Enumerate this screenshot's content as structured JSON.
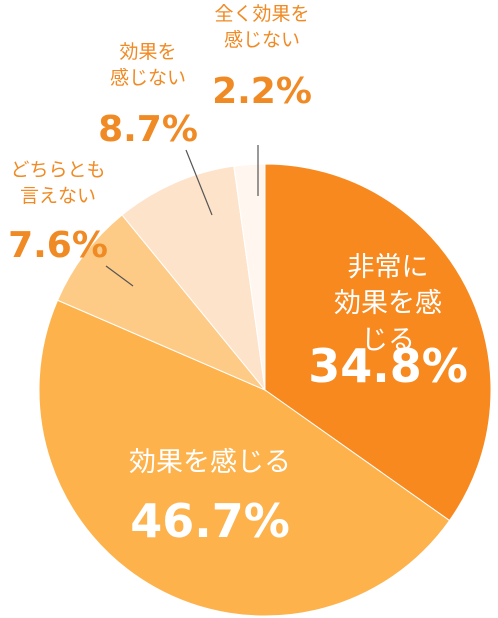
{
  "chart_data": {
    "type": "pie",
    "categories": [
      "非常に\n効果を感じる",
      "効果を感じる",
      "どちらとも\n言えない",
      "効果を\n感じない",
      "全く効果を\n感じない"
    ],
    "values": [
      34.8,
      46.7,
      7.6,
      8.7,
      2.2
    ],
    "value_labels": [
      "34.8%",
      "46.7%",
      "7.6%",
      "8.7%",
      "2.2%"
    ],
    "colors": [
      "#f7891f",
      "#fdb24c",
      "#fdcb86",
      "#fee3cb",
      "#fff7ef"
    ]
  }
}
